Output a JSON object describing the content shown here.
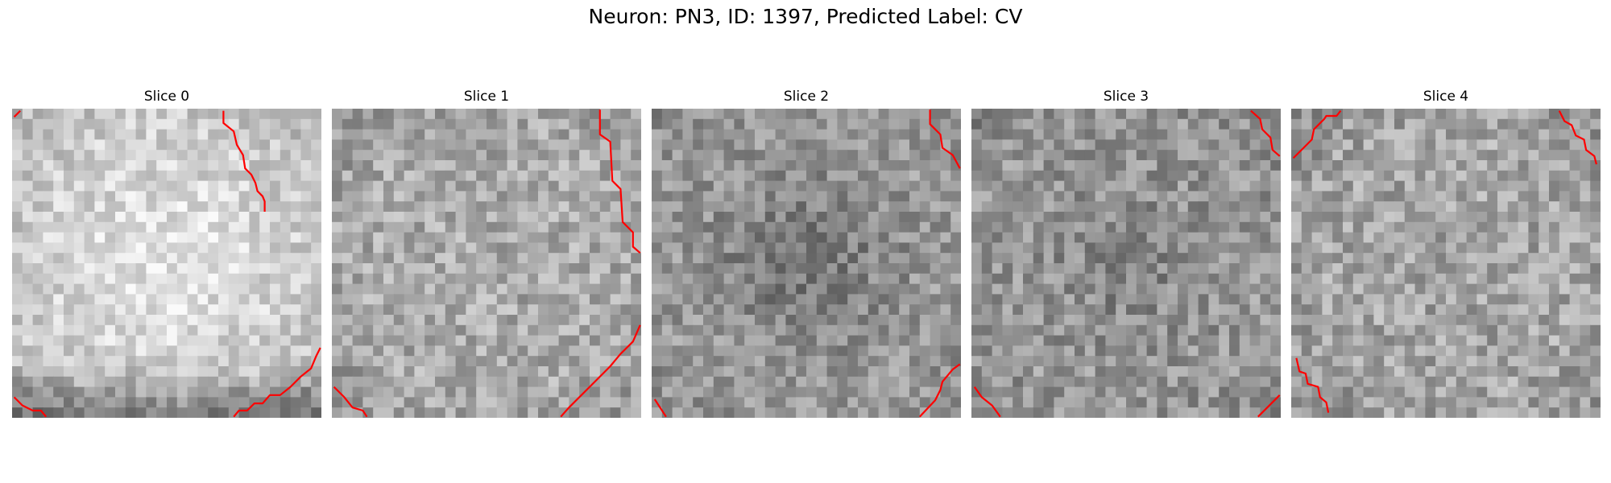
{
  "figure": {
    "title": "Neuron: PN3, ID: 1397, Predicted Label: CV",
    "overlay_color": "#ff0000",
    "grid_size": 30,
    "slices": [
      {
        "title": "Slice 0",
        "base": 200,
        "center": 30,
        "contrast": 32
      },
      {
        "title": "Slice 1",
        "base": 170,
        "center": 0,
        "contrast": 38
      },
      {
        "title": "Slice 2",
        "base": 160,
        "center": -40,
        "contrast": 36
      },
      {
        "title": "Slice 3",
        "base": 155,
        "center": -20,
        "contrast": 38
      },
      {
        "title": "Slice 4",
        "base": 165,
        "center": 0,
        "contrast": 40
      }
    ]
  }
}
